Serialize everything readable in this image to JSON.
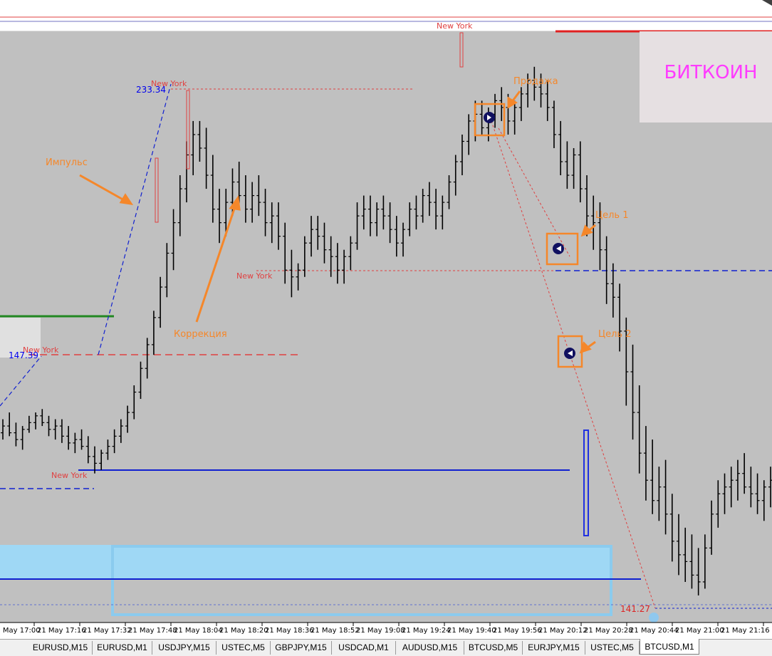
{
  "chart_data": {
    "type": "candlestick",
    "symbol_label": "БИТКОИН",
    "x_ticks": [
      "21 May 17:00",
      "21 May 17:16",
      "21 May 17:32",
      "21 May 17:48",
      "21 May 18:04",
      "21 May 18:20",
      "21 May 18:36",
      "21 May 18:52",
      "21 May 19:08",
      "21 May 19:24",
      "21 May 19:40",
      "21 May 19:56",
      "21 May 20:12",
      "21 May 20:28",
      "21 May 20:44",
      "21 May 21:00",
      "21 May 21:16"
    ],
    "y_range": [
      110,
      280
    ],
    "price_labels": [
      {
        "text": "233.34",
        "value": 233.34,
        "color": "#0000ee"
      },
      {
        "text": "147.39",
        "value": 147.39,
        "color": "#0000ee"
      },
      {
        "text": "141.27",
        "value": 141.27,
        "color": "#dd2222"
      }
    ],
    "session_labels": [
      "New York",
      "New York",
      "New York",
      "New York",
      "New York"
    ],
    "annotations": [
      "Импульс",
      "Коррекция",
      "Продажа",
      "Цель 1",
      "Цель 2"
    ],
    "accent_color": "#f5872a",
    "background": "#c0c0c0",
    "series": [
      {
        "values": [
          [
            0,
            142,
            146,
            140,
            144
          ],
          [
            1,
            144,
            148,
            141,
            142
          ],
          [
            2,
            142,
            145,
            138,
            140
          ],
          [
            3,
            140,
            144,
            137,
            143
          ],
          [
            4,
            143,
            147,
            142,
            145
          ],
          [
            5,
            145,
            148,
            143,
            147
          ],
          [
            6,
            147,
            149,
            144,
            145
          ],
          [
            7,
            145,
            147,
            141,
            143
          ],
          [
            8,
            143,
            146,
            140,
            144
          ],
          [
            9,
            144,
            146,
            139,
            141
          ],
          [
            10,
            141,
            144,
            137,
            139
          ],
          [
            11,
            139,
            142,
            136,
            140
          ],
          [
            12,
            140,
            143,
            137,
            138
          ],
          [
            13,
            138,
            141,
            133,
            135
          ],
          [
            14,
            135,
            138,
            130,
            133
          ],
          [
            15,
            133,
            137,
            131,
            136
          ],
          [
            16,
            136,
            140,
            134,
            138
          ],
          [
            17,
            138,
            143,
            136,
            141
          ],
          [
            18,
            141,
            146,
            139,
            144
          ],
          [
            19,
            144,
            150,
            142,
            148
          ],
          [
            20,
            148,
            156,
            146,
            154
          ],
          [
            21,
            154,
            163,
            152,
            161
          ],
          [
            22,
            161,
            170,
            158,
            168
          ],
          [
            23,
            168,
            178,
            165,
            176
          ],
          [
            24,
            176,
            188,
            173,
            185
          ],
          [
            25,
            185,
            198,
            182,
            195
          ],
          [
            26,
            195,
            208,
            190,
            204
          ],
          [
            27,
            204,
            218,
            200,
            214
          ],
          [
            28,
            214,
            228,
            210,
            224
          ],
          [
            29,
            224,
            234,
            218,
            230
          ],
          [
            30,
            230,
            234,
            222,
            226
          ],
          [
            31,
            226,
            232,
            214,
            218
          ],
          [
            32,
            218,
            224,
            204,
            208
          ],
          [
            33,
            208,
            214,
            198,
            204
          ],
          [
            34,
            204,
            214,
            200,
            210
          ],
          [
            35,
            210,
            220,
            206,
            216
          ],
          [
            36,
            216,
            222,
            208,
            212
          ],
          [
            37,
            212,
            218,
            204,
            208
          ],
          [
            38,
            208,
            216,
            204,
            212
          ],
          [
            39,
            212,
            218,
            206,
            210
          ],
          [
            40,
            210,
            214,
            200,
            204
          ],
          [
            41,
            204,
            210,
            198,
            206
          ],
          [
            42,
            206,
            210,
            196,
            200
          ],
          [
            43,
            200,
            204,
            186,
            190
          ],
          [
            44,
            190,
            196,
            182,
            188
          ],
          [
            45,
            188,
            192,
            184,
            190
          ],
          [
            46,
            190,
            200,
            188,
            198
          ],
          [
            47,
            198,
            206,
            194,
            202
          ],
          [
            48,
            202,
            206,
            196,
            200
          ],
          [
            49,
            200,
            204,
            192,
            196
          ],
          [
            50,
            196,
            200,
            188,
            194
          ],
          [
            51,
            194,
            198,
            186,
            190
          ],
          [
            52,
            190,
            196,
            186,
            194
          ],
          [
            53,
            194,
            200,
            190,
            198
          ],
          [
            54,
            198,
            210,
            196,
            206
          ],
          [
            55,
            206,
            212,
            202,
            208
          ],
          [
            56,
            208,
            212,
            200,
            204
          ],
          [
            57,
            204,
            210,
            200,
            208
          ],
          [
            58,
            208,
            212,
            202,
            206
          ],
          [
            59,
            206,
            210,
            198,
            202
          ],
          [
            60,
            202,
            206,
            194,
            198
          ],
          [
            61,
            198,
            204,
            194,
            202
          ],
          [
            62,
            202,
            210,
            200,
            208
          ],
          [
            63,
            208,
            212,
            202,
            206
          ],
          [
            64,
            206,
            214,
            204,
            212
          ],
          [
            65,
            212,
            216,
            206,
            210
          ],
          [
            66,
            210,
            214,
            202,
            206
          ],
          [
            67,
            206,
            212,
            202,
            210
          ],
          [
            68,
            210,
            218,
            208,
            216
          ],
          [
            69,
            216,
            224,
            212,
            222
          ],
          [
            70,
            222,
            230,
            218,
            228
          ],
          [
            71,
            228,
            236,
            224,
            234
          ],
          [
            72,
            234,
            240,
            228,
            236
          ],
          [
            73,
            236,
            240,
            230,
            232
          ],
          [
            74,
            232,
            238,
            228,
            236
          ],
          [
            75,
            236,
            242,
            232,
            240
          ],
          [
            76,
            240,
            244,
            234,
            238
          ],
          [
            77,
            238,
            242,
            230,
            234
          ],
          [
            78,
            234,
            240,
            230,
            238
          ],
          [
            79,
            238,
            244,
            234,
            242
          ],
          [
            80,
            242,
            248,
            238,
            246
          ],
          [
            81,
            246,
            250,
            240,
            244
          ],
          [
            82,
            244,
            248,
            238,
            242
          ],
          [
            83,
            242,
            246,
            234,
            238
          ],
          [
            84,
            238,
            240,
            226,
            230
          ],
          [
            85,
            230,
            234,
            218,
            222
          ],
          [
            86,
            222,
            228,
            214,
            218
          ],
          [
            87,
            218,
            226,
            214,
            224
          ],
          [
            88,
            224,
            228,
            210,
            214
          ],
          [
            89,
            214,
            218,
            200,
            206
          ],
          [
            90,
            206,
            212,
            196,
            204
          ],
          [
            91,
            204,
            210,
            190,
            196
          ],
          [
            92,
            196,
            200,
            180,
            186
          ],
          [
            93,
            186,
            192,
            176,
            182
          ],
          [
            94,
            182,
            186,
            166,
            172
          ],
          [
            95,
            172,
            176,
            150,
            160
          ],
          [
            96,
            160,
            168,
            140,
            148
          ],
          [
            97,
            148,
            156,
            130,
            136
          ],
          [
            98,
            136,
            144,
            122,
            128
          ],
          [
            99,
            128,
            140,
            118,
            122
          ],
          [
            100,
            122,
            132,
            116,
            126
          ],
          [
            101,
            126,
            134,
            112,
            118
          ],
          [
            102,
            118,
            124,
            104,
            110
          ],
          [
            103,
            110,
            118,
            100,
            106
          ],
          [
            104,
            106,
            114,
            98,
            104
          ],
          [
            105,
            104,
            112,
            96,
            100
          ],
          [
            106,
            100,
            108,
            94,
            98
          ],
          [
            107,
            98,
            112,
            96,
            108
          ],
          [
            108,
            108,
            122,
            106,
            118
          ],
          [
            109,
            118,
            128,
            114,
            124
          ],
          [
            110,
            124,
            130,
            118,
            126
          ],
          [
            111,
            126,
            132,
            120,
            128
          ],
          [
            112,
            128,
            134,
            122,
            130
          ],
          [
            113,
            130,
            136,
            124,
            126
          ],
          [
            114,
            126,
            132,
            120,
            124
          ],
          [
            115,
            124,
            130,
            118,
            122
          ],
          [
            116,
            122,
            128,
            116,
            126
          ],
          [
            117,
            126,
            132,
            120,
            128
          ]
        ]
      }
    ]
  }
}
